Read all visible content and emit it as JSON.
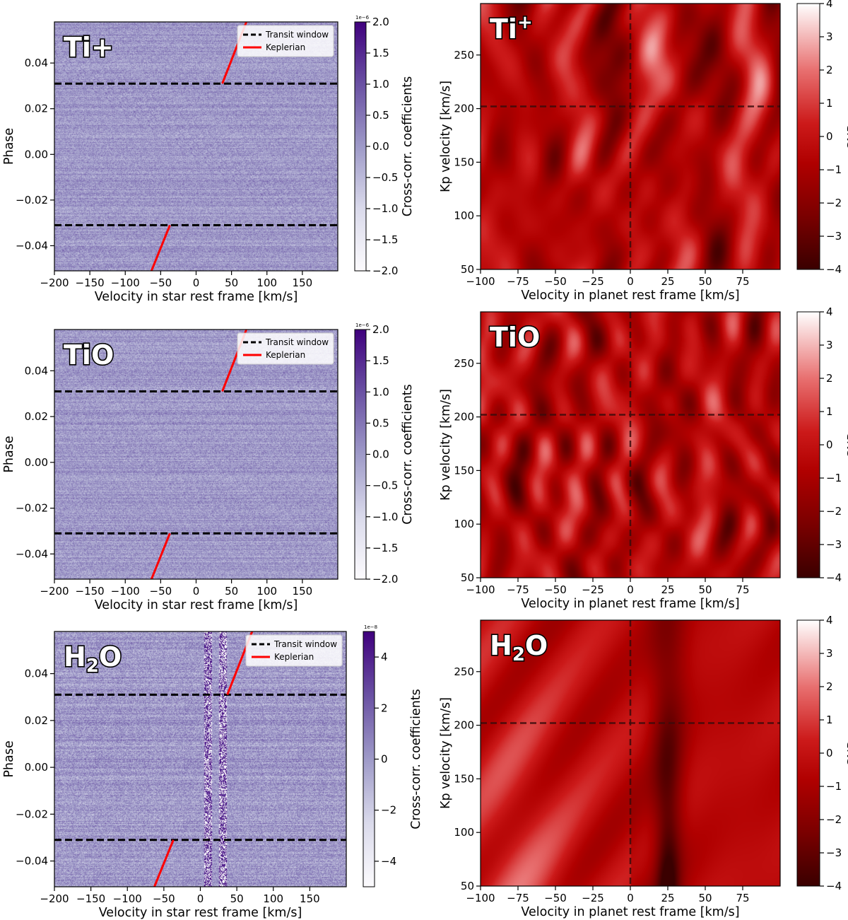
{
  "chart_data": [
    {
      "id": "ccf_tiplus",
      "type": "heatmap",
      "label": "Ti+",
      "xlabel": "Velocity in star rest frame [km/s]",
      "ylabel": "Phase",
      "xlim": [
        -200,
        200
      ],
      "ylim": [
        -0.051,
        0.058
      ],
      "xticks": [
        -200,
        -150,
        -100,
        -50,
        0,
        50,
        100,
        150
      ],
      "xtick_labels": [
        "−200",
        "−150",
        "−100",
        "−50",
        "0",
        "50",
        "100",
        "150"
      ],
      "yticks": [
        -0.04,
        -0.02,
        0.0,
        0.02,
        0.04
      ],
      "ytick_labels": [
        "−0.04",
        "−0.02",
        "0.00",
        "0.02",
        "0.04"
      ],
      "colormap": "Purples",
      "colorbar": {
        "label": "Cross-corr. coefficients",
        "range": [
          -2.0,
          2.0
        ],
        "ticks": [
          2.0,
          1.5,
          1.0,
          0.5,
          0.0,
          -0.5,
          -1.0,
          -1.5,
          -2.0
        ],
        "tick_labels": [
          "2.0",
          "1.5",
          "1.0",
          "0.5",
          "0.0",
          "−0.5",
          "−1.0",
          "−1.5",
          "−2.0"
        ],
        "multiplier": "1e−6"
      },
      "transit_window": [
        -0.031,
        0.031
      ],
      "keplerian_segments": [
        {
          "x": [
            -63,
            -37
          ],
          "y": [
            -0.051,
            -0.031
          ]
        },
        {
          "x": [
            37,
            71
          ],
          "y": [
            0.031,
            0.058
          ]
        }
      ],
      "legend": {
        "position": "top-right",
        "entries": [
          "Transit window",
          "Keplerian"
        ]
      },
      "texture": "noise"
    },
    {
      "id": "snr_tiplus",
      "type": "heatmap",
      "label": "Ti",
      "label_superscript": "+",
      "xlabel": "Velocity in planet rest frame [km/s]",
      "ylabel": "Kp velocity [km/s]",
      "xlim": [
        -100,
        100
      ],
      "ylim": [
        50,
        298
      ],
      "xticks": [
        -100,
        -75,
        -50,
        -25,
        0,
        25,
        50,
        75
      ],
      "xtick_labels": [
        "−100",
        "−75",
        "−50",
        "−25",
        "0",
        "25",
        "50",
        "75"
      ],
      "yticks": [
        50,
        100,
        150,
        200,
        250
      ],
      "ytick_labels": [
        "50",
        "100",
        "150",
        "200",
        "250"
      ],
      "colormap": "Reds",
      "colorbar": {
        "label": "SNR",
        "range": [
          -4,
          4
        ],
        "ticks": [
          4,
          3,
          2,
          1,
          0,
          -1,
          -2,
          -3,
          -4
        ],
        "tick_labels": [
          "4",
          "3",
          "2",
          "1",
          "0",
          "−1",
          "−2",
          "−3",
          "−4"
        ]
      },
      "crosshair": {
        "x": 0,
        "y": 202
      },
      "texture": "streaks"
    },
    {
      "id": "ccf_tio",
      "type": "heatmap",
      "label": "TiO",
      "xlabel": "Velocity in star rest frame [km/s]",
      "ylabel": "Phase",
      "xlim": [
        -200,
        200
      ],
      "ylim": [
        -0.051,
        0.058
      ],
      "xticks": [
        -200,
        -150,
        -100,
        -50,
        0,
        50,
        100,
        150
      ],
      "xtick_labels": [
        "−200",
        "−150",
        "−100",
        "−50",
        "0",
        "50",
        "100",
        "150"
      ],
      "yticks": [
        -0.04,
        -0.02,
        0.0,
        0.02,
        0.04
      ],
      "ytick_labels": [
        "−0.04",
        "−0.02",
        "0.00",
        "0.02",
        "0.04"
      ],
      "colormap": "Purples",
      "colorbar": {
        "label": "Cross-corr. coefficients",
        "range": [
          -2.0,
          2.0
        ],
        "ticks": [
          2.0,
          1.5,
          1.0,
          0.5,
          0.0,
          -0.5,
          -1.0,
          -1.5,
          -2.0
        ],
        "tick_labels": [
          "2.0",
          "1.5",
          "1.0",
          "0.5",
          "0.0",
          "−0.5",
          "−1.0",
          "−1.5",
          "−2.0"
        ],
        "multiplier": "1e−6"
      },
      "transit_window": [
        -0.031,
        0.031
      ],
      "keplerian_segments": [
        {
          "x": [
            -63,
            -37
          ],
          "y": [
            -0.051,
            -0.031
          ]
        },
        {
          "x": [
            37,
            71
          ],
          "y": [
            0.031,
            0.058
          ]
        }
      ],
      "legend": {
        "position": "top-right",
        "entries": [
          "Transit window",
          "Keplerian"
        ]
      },
      "texture": "noise"
    },
    {
      "id": "snr_tio",
      "type": "heatmap",
      "label": "TiO",
      "xlabel": "Velocity in planet rest frame [km/s]",
      "ylabel": "Kp velocity [km/s]",
      "xlim": [
        -100,
        100
      ],
      "ylim": [
        50,
        298
      ],
      "xticks": [
        -100,
        -75,
        -50,
        -25,
        0,
        25,
        50,
        75
      ],
      "xtick_labels": [
        "−100",
        "−75",
        "−50",
        "−25",
        "0",
        "25",
        "50",
        "75"
      ],
      "yticks": [
        50,
        100,
        150,
        200,
        250
      ],
      "ytick_labels": [
        "50",
        "100",
        "150",
        "200",
        "250"
      ],
      "colormap": "Reds",
      "colorbar": {
        "label": "SNR",
        "range": [
          -4,
          4
        ],
        "ticks": [
          4,
          3,
          2,
          1,
          0,
          -1,
          -2,
          -3,
          -4
        ],
        "tick_labels": [
          "4",
          "3",
          "2",
          "1",
          "0",
          "−1",
          "−2",
          "−3",
          "−4"
        ]
      },
      "crosshair": {
        "x": 0,
        "y": 202
      },
      "texture": "streaks"
    },
    {
      "id": "ccf_h2o",
      "type": "heatmap",
      "label": "H",
      "label_subscript": "2",
      "label_suffix": "O",
      "xlabel": "Velocity in star rest frame [km/s]",
      "ylabel": "Phase",
      "xlim": [
        -200,
        200
      ],
      "ylim": [
        -0.051,
        0.058
      ],
      "xticks": [
        -200,
        -150,
        -100,
        -50,
        0,
        50,
        100,
        150
      ],
      "xtick_labels": [
        "−200",
        "−150",
        "−100",
        "−50",
        "0",
        "50",
        "100",
        "150"
      ],
      "yticks": [
        -0.04,
        -0.02,
        0.0,
        0.02,
        0.04
      ],
      "ytick_labels": [
        "−0.04",
        "−0.02",
        "0.00",
        "0.02",
        "0.04"
      ],
      "colormap": "Purples",
      "colorbar": {
        "label": "Cross-corr. coefficients",
        "range": [
          -5,
          5
        ],
        "ticks": [
          4,
          2,
          0,
          -2,
          -4
        ],
        "tick_labels": [
          "4",
          "2",
          "0",
          "−2",
          "−4"
        ],
        "multiplier": "1e−8"
      },
      "transit_window": [
        -0.031,
        0.031
      ],
      "keplerian_segments": [
        {
          "x": [
            -63,
            -37
          ],
          "y": [
            -0.051,
            -0.031
          ]
        },
        {
          "x": [
            37,
            71
          ],
          "y": [
            0.031,
            0.058
          ]
        }
      ],
      "legend": {
        "position": "top-right",
        "entries": [
          "Transit window",
          "Keplerian"
        ]
      },
      "texture": "noise_with_telluric_band"
    },
    {
      "id": "snr_h2o",
      "type": "heatmap",
      "label": "H",
      "label_subscript": "2",
      "label_suffix": "O",
      "xlabel": "Velocity in planet rest frame [km/s]",
      "ylabel": "Kp velocity [km/s]",
      "xlim": [
        -100,
        100
      ],
      "ylim": [
        50,
        298
      ],
      "xticks": [
        -100,
        -75,
        -50,
        -25,
        0,
        25,
        50,
        75
      ],
      "xtick_labels": [
        "−100",
        "−75",
        "−50",
        "−25",
        "0",
        "25",
        "50",
        "75"
      ],
      "yticks": [
        50,
        100,
        150,
        200,
        250
      ],
      "ytick_labels": [
        "50",
        "100",
        "150",
        "200",
        "250"
      ],
      "colormap": "Reds",
      "colorbar": {
        "label": "SNR",
        "range": [
          -4,
          4
        ],
        "ticks": [
          4,
          3,
          2,
          1,
          0,
          -1,
          -2,
          -3,
          -4
        ],
        "tick_labels": [
          "4",
          "3",
          "2",
          "1",
          "0",
          "−1",
          "−2",
          "−3",
          "−4"
        ]
      },
      "crosshair": {
        "x": 0,
        "y": 202
      },
      "texture": "broad_bands"
    }
  ]
}
